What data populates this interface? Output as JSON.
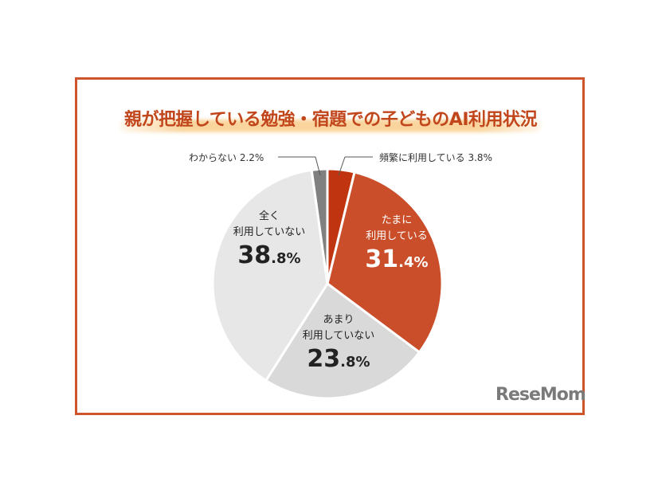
{
  "title": "親が把握している勉強・宿題での子どものAI利用状況",
  "chart_data": {
    "type": "pie",
    "title": "親が把握している勉強・宿題での子どものAI利用状況",
    "start_angle": "12 o'clock, clockwise",
    "slices": [
      {
        "label": "頻繁に利用している",
        "value": 3.8,
        "value_label": "3.8%",
        "color": "#c0350f"
      },
      {
        "label": "たまに 利用している",
        "line1": "たまに",
        "line2": "利用している",
        "value": 31.4,
        "int_part": "31",
        "dec_part": ".4%",
        "color": "#c94e29"
      },
      {
        "label": "あまり 利用していない",
        "line1": "あまり",
        "line2": "利用していない",
        "value": 23.8,
        "int_part": "23",
        "dec_part": ".8%",
        "color": "#d9d9d9"
      },
      {
        "label": "全く 利用していない",
        "line1": "全く",
        "line2": "利用していない",
        "value": 38.8,
        "int_part": "38",
        "dec_part": ".8%",
        "color": "#e7e7e7"
      },
      {
        "label": "わからない",
        "value": 2.2,
        "value_label": "2.2%",
        "color": "#808080"
      }
    ]
  },
  "logo": "ReseMom"
}
